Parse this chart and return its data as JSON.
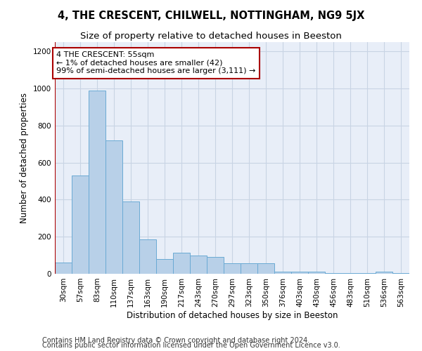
{
  "title": "4, THE CRESCENT, CHILWELL, NOTTINGHAM, NG9 5JX",
  "subtitle": "Size of property relative to detached houses in Beeston",
  "xlabel": "Distribution of detached houses by size in Beeston",
  "ylabel": "Number of detached properties",
  "categories": [
    "30sqm",
    "57sqm",
    "83sqm",
    "110sqm",
    "137sqm",
    "163sqm",
    "190sqm",
    "217sqm",
    "243sqm",
    "270sqm",
    "297sqm",
    "323sqm",
    "350sqm",
    "376sqm",
    "403sqm",
    "430sqm",
    "456sqm",
    "483sqm",
    "510sqm",
    "536sqm",
    "563sqm"
  ],
  "values": [
    60,
    530,
    990,
    720,
    390,
    185,
    80,
    115,
    100,
    90,
    55,
    55,
    55,
    10,
    10,
    10,
    5,
    5,
    5,
    10,
    5
  ],
  "bar_color": "#b8d0e8",
  "bar_edge_color": "#6aaad4",
  "highlight_line_color": "#aa0000",
  "annotation_text": "4 THE CRESCENT: 55sqm\n← 1% of detached houses are smaller (42)\n99% of semi-detached houses are larger (3,111) →",
  "annotation_box_color": "#ffffff",
  "annotation_box_edge_color": "#aa0000",
  "ylim": [
    0,
    1250
  ],
  "yticks": [
    0,
    200,
    400,
    600,
    800,
    1000,
    1200
  ],
  "footnote1": "Contains HM Land Registry data © Crown copyright and database right 2024.",
  "footnote2": "Contains public sector information licensed under the Open Government Licence v3.0.",
  "bg_color": "#ffffff",
  "plot_bg_color": "#e8eef8",
  "grid_color": "#c8d4e4",
  "title_fontsize": 10.5,
  "subtitle_fontsize": 9.5,
  "axis_label_fontsize": 8.5,
  "tick_fontsize": 7.5,
  "annotation_fontsize": 8,
  "footnote_fontsize": 7
}
